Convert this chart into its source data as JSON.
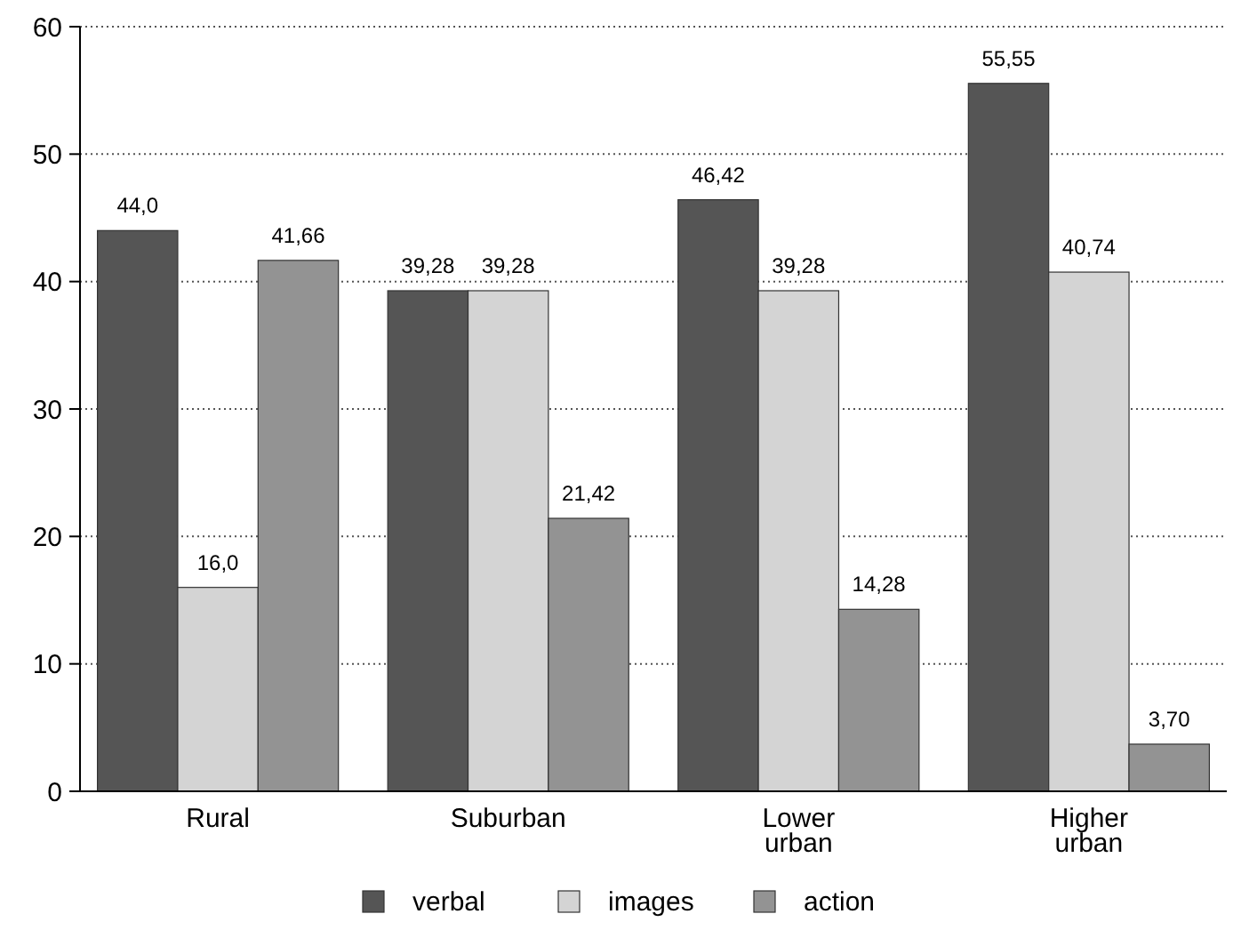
{
  "chart_data": {
    "type": "bar",
    "categories": [
      "Rural",
      "Suburban",
      "Lower urban",
      "Higher urban"
    ],
    "series": [
      {
        "name": "verbal",
        "color": "#555555",
        "values": [
          44.0,
          39.28,
          46.42,
          55.55
        ],
        "value_labels": [
          "44,0",
          "39,28",
          "46,42",
          "55,55"
        ]
      },
      {
        "name": "images",
        "color": "#d4d4d4",
        "values": [
          16.0,
          39.28,
          39.28,
          40.74
        ],
        "value_labels": [
          "16,0",
          "39,28",
          "39,28",
          "40,74"
        ]
      },
      {
        "name": "action",
        "color": "#939393",
        "values": [
          41.66,
          21.42,
          14.28,
          3.7
        ],
        "value_labels": [
          "41,66",
          "21,42",
          "14,28",
          "3,70"
        ]
      }
    ],
    "ylim": [
      0,
      60
    ],
    "yticks": [
      0,
      10,
      20,
      30,
      40,
      50,
      60
    ],
    "grid": "y",
    "legend": "bottom"
  }
}
